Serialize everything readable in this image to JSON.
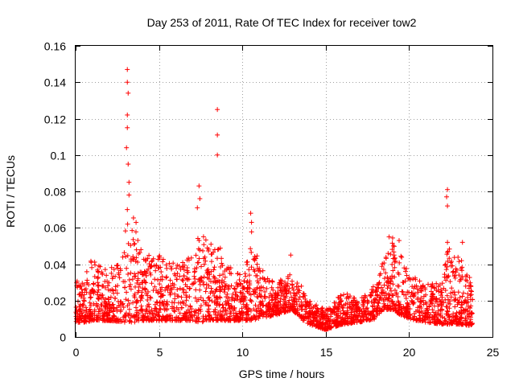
{
  "chart_data": {
    "type": "scatter",
    "title": "Day 253 of 2011, Rate Of TEC Index for receiver tow2",
    "xlabel": "GPS time / hours",
    "ylabel": "ROTI / TECUs",
    "xlim": [
      0,
      25
    ],
    "ylim": [
      0,
      0.16
    ],
    "xticks": [
      0,
      5,
      10,
      15,
      20,
      25
    ],
    "xtick_labels": [
      "0",
      "5",
      "10",
      "15",
      "20",
      "25"
    ],
    "yticks": [
      0,
      0.02,
      0.04,
      0.06,
      0.08,
      0.1,
      0.12,
      0.14,
      0.16
    ],
    "ytick_labels": [
      "0",
      "0.02",
      "0.04",
      "0.06",
      "0.08",
      "0.1",
      "0.12",
      "0.14",
      "0.16"
    ],
    "grid": true,
    "marker": "+",
    "color": "#ff0000",
    "x_data_range": [
      0,
      23.8
    ],
    "approx_envelope": {
      "x": [
        0,
        0.5,
        1,
        2,
        3,
        3.5,
        4,
        5,
        6,
        7,
        7.5,
        8,
        8.5,
        9,
        10,
        10.5,
        11,
        12,
        13,
        13.5,
        14,
        15,
        16,
        17,
        18,
        18.5,
        19,
        19.5,
        20,
        21,
        22,
        22.3,
        23,
        23.8
      ],
      "y_typical_min": [
        0.008,
        0.008,
        0.009,
        0.009,
        0.008,
        0.008,
        0.009,
        0.009,
        0.009,
        0.009,
        0.008,
        0.009,
        0.009,
        0.009,
        0.009,
        0.009,
        0.01,
        0.012,
        0.015,
        0.01,
        0.007,
        0.004,
        0.007,
        0.008,
        0.01,
        0.015,
        0.015,
        0.012,
        0.01,
        0.008,
        0.007,
        0.007,
        0.007,
        0.006
      ],
      "y_typical_max": [
        0.03,
        0.035,
        0.045,
        0.035,
        0.06,
        0.07,
        0.045,
        0.045,
        0.04,
        0.045,
        0.06,
        0.05,
        0.055,
        0.04,
        0.035,
        0.06,
        0.04,
        0.03,
        0.035,
        0.03,
        0.02,
        0.015,
        0.025,
        0.02,
        0.03,
        0.045,
        0.055,
        0.045,
        0.035,
        0.03,
        0.03,
        0.05,
        0.045,
        0.03
      ]
    },
    "highlighted_points": [
      {
        "x": 3.1,
        "y": 0.147
      },
      {
        "x": 3.1,
        "y": 0.14
      },
      {
        "x": 3.15,
        "y": 0.134
      },
      {
        "x": 3.1,
        "y": 0.122
      },
      {
        "x": 3.1,
        "y": 0.115
      },
      {
        "x": 3.05,
        "y": 0.104
      },
      {
        "x": 3.15,
        "y": 0.095
      },
      {
        "x": 3.2,
        "y": 0.085
      },
      {
        "x": 3.2,
        "y": 0.078
      },
      {
        "x": 3.1,
        "y": 0.07
      },
      {
        "x": 7.4,
        "y": 0.083
      },
      {
        "x": 7.45,
        "y": 0.076
      },
      {
        "x": 7.3,
        "y": 0.071
      },
      {
        "x": 8.5,
        "y": 0.125
      },
      {
        "x": 8.5,
        "y": 0.111
      },
      {
        "x": 8.5,
        "y": 0.1
      },
      {
        "x": 10.5,
        "y": 0.068
      },
      {
        "x": 10.55,
        "y": 0.063
      },
      {
        "x": 12.9,
        "y": 0.045
      },
      {
        "x": 18.8,
        "y": 0.055
      },
      {
        "x": 19.4,
        "y": 0.053
      },
      {
        "x": 22.3,
        "y": 0.081
      },
      {
        "x": 22.25,
        "y": 0.077
      },
      {
        "x": 22.3,
        "y": 0.072
      },
      {
        "x": 22.3,
        "y": 0.052
      },
      {
        "x": 23.2,
        "y": 0.052
      }
    ]
  }
}
